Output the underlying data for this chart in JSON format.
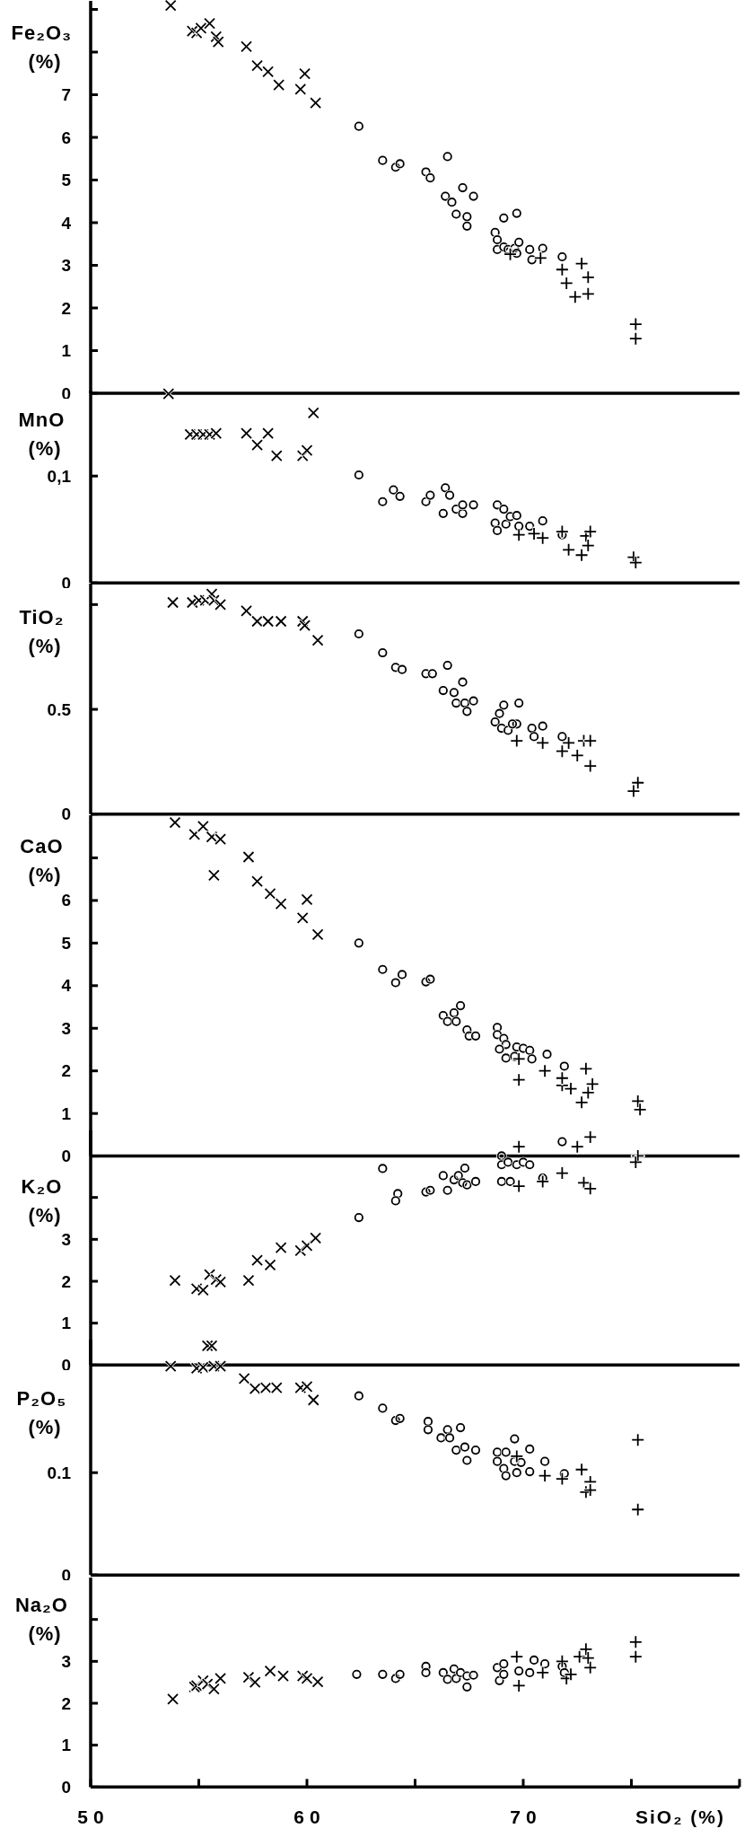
{
  "chart_data": [
    {
      "type": "scatter",
      "ylabel": "Fe₂O₃ (%)",
      "xlim": [
        50,
        80
      ],
      "ylim": [
        0,
        9.2
      ],
      "yticks": [
        0,
        1,
        2,
        3,
        4,
        5,
        6,
        7,
        {
          "value": 8,
          "label": null
        },
        {
          "value": 9,
          "label": null
        }
      ],
      "tick_labels": "y",
      "series": [
        {
          "color": "#000000",
          "marker": "x",
          "x": [
            53.7,
            54.7,
            54.9,
            55.1,
            55.5,
            55.8,
            55.9,
            57.2,
            57.7,
            58.2,
            58.7,
            59.7,
            59.9,
            60.4
          ],
          "values": [
            9.09,
            8.49,
            8.45,
            8.56,
            8.67,
            8.36,
            8.24,
            8.13,
            7.68,
            7.54,
            7.23,
            7.13,
            7.49,
            6.81
          ]
        },
        {
          "color": "#000000",
          "marker": "circle",
          "x": [
            62.4,
            63.5,
            64.1,
            64.3,
            65.5,
            65.7,
            66.5,
            66.4,
            66.7,
            67.2,
            66.9,
            67.4,
            67.4,
            67.7,
            69.1,
            69.7,
            68.7,
            68.8,
            68.8,
            69.1,
            69.3,
            69.6,
            69.8,
            69.7,
            70.3,
            70.4,
            70.9,
            71.8
          ],
          "values": [
            6.26,
            5.46,
            5.3,
            5.38,
            5.19,
            5.05,
            5.55,
            4.62,
            4.48,
            4.82,
            4.2,
            4.14,
            3.92,
            4.62,
            4.11,
            4.22,
            3.77,
            3.6,
            3.37,
            3.43,
            3.37,
            3.4,
            3.54,
            3.28,
            3.37,
            3.13,
            3.4,
            3.2
          ]
        },
        {
          "color": "#000000",
          "marker": "cross",
          "x": [
            69.4,
            70.8,
            71.8,
            72.0,
            72.4,
            72.7,
            73.0,
            73.0,
            75.2,
            75.2
          ],
          "values": [
            3.26,
            3.17,
            2.9,
            2.58,
            2.26,
            3.04,
            2.72,
            2.33,
            1.62,
            1.28
          ]
        }
      ]
    },
    {
      "type": "scatter",
      "ylabel": "MnO (%)",
      "xlim": [
        50,
        80
      ],
      "ylim": [
        0,
        0.18
      ],
      "yticks": [
        0,
        {
          "value": 0.1,
          "label": "0,1"
        }
      ],
      "tick_labels": "y",
      "series": [
        {
          "color": "#000000",
          "marker": "x",
          "x": [
            53.6,
            54.6,
            54.9,
            55.2,
            55.5,
            55.8,
            57.2,
            57.7,
            58.2,
            58.6,
            59.8,
            60.0,
            60.3
          ],
          "values": [
            0.177,
            0.139,
            0.139,
            0.139,
            0.139,
            0.14,
            0.14,
            0.129,
            0.14,
            0.119,
            0.119,
            0.124,
            0.159
          ]
        },
        {
          "color": "#000000",
          "marker": "circle",
          "x": [
            62.4,
            63.5,
            64.0,
            64.3,
            65.5,
            65.7,
            66.4,
            66.6,
            66.3,
            66.9,
            67.2,
            67.2,
            67.7,
            68.8,
            69.1,
            68.7,
            68.8,
            69.2,
            69.4,
            69.7,
            69.8,
            70.3,
            70.9,
            71.8
          ],
          "values": [
            0.101,
            0.076,
            0.087,
            0.081,
            0.076,
            0.082,
            0.089,
            0.082,
            0.065,
            0.069,
            0.065,
            0.073,
            0.073,
            0.073,
            0.069,
            0.056,
            0.049,
            0.055,
            0.062,
            0.063,
            0.053,
            0.053,
            0.058,
            0.045
          ]
        },
        {
          "color": "#000000",
          "marker": "cross",
          "x": [
            69.8,
            70.5,
            70.9,
            71.8,
            72.1,
            72.7,
            72.9,
            73.1,
            73.0,
            75.1,
            75.2
          ],
          "values": [
            0.045,
            0.046,
            0.042,
            0.048,
            0.031,
            0.026,
            0.044,
            0.048,
            0.035,
            0.024,
            0.019
          ]
        }
      ]
    },
    {
      "type": "scatter",
      "ylabel": "TiO₂ (%)",
      "xlim": [
        50,
        80
      ],
      "ylim": [
        0,
        1.1
      ],
      "yticks": [
        0,
        0.5,
        {
          "value": 1,
          "label": null
        }
      ],
      "tick_labels": "y",
      "series": [
        {
          "color": "#000000",
          "marker": "x",
          "x": [
            53.8,
            54.7,
            55.0,
            55.3,
            55.6,
            55.7,
            56.0,
            57.2,
            57.7,
            58.2,
            58.8,
            59.8,
            59.9,
            60.5
          ],
          "values": [
            1.01,
            1.01,
            1.02,
            1.02,
            1.05,
            1.02,
            1.0,
            0.97,
            0.92,
            0.92,
            0.92,
            0.92,
            0.9,
            0.83
          ]
        },
        {
          "color": "#000000",
          "marker": "circle",
          "x": [
            62.4,
            63.5,
            64.1,
            64.4,
            65.5,
            65.8,
            66.5,
            66.3,
            66.8,
            67.2,
            66.9,
            67.3,
            67.7,
            67.4,
            69.1,
            69.8,
            68.9,
            68.7,
            69.0,
            69.3,
            69.7,
            69.5,
            70.4,
            70.9,
            70.5,
            71.8
          ],
          "values": [
            0.86,
            0.77,
            0.7,
            0.69,
            0.67,
            0.67,
            0.71,
            0.59,
            0.58,
            0.63,
            0.53,
            0.53,
            0.54,
            0.49,
            0.52,
            0.53,
            0.48,
            0.44,
            0.41,
            0.4,
            0.43,
            0.43,
            0.41,
            0.42,
            0.37,
            0.37
          ]
        },
        {
          "color": "#000000",
          "marker": "cross",
          "x": [
            69.7,
            70.9,
            71.8,
            72.1,
            72.5,
            72.8,
            73.1,
            73.1,
            75.3,
            75.1
          ],
          "values": [
            0.35,
            0.34,
            0.3,
            0.34,
            0.28,
            0.35,
            0.35,
            0.23,
            0.15,
            0.11
          ]
        }
      ]
    },
    {
      "type": "scatter",
      "ylabel": "CaO (%)",
      "xlim": [
        50,
        80
      ],
      "ylim": [
        0,
        8
      ],
      "yticks": [
        0,
        1,
        2,
        3,
        4,
        5,
        6,
        {
          "value": 7,
          "label": null
        }
      ],
      "tick_labels": "y",
      "series": [
        {
          "color": "#000000",
          "marker": "x",
          "x": [
            53.9,
            54.8,
            55.2,
            55.6,
            56.0,
            55.7,
            57.3,
            57.7,
            58.3,
            58.8,
            59.8,
            60.0,
            60.5
          ],
          "values": [
            7.83,
            7.55,
            7.74,
            7.49,
            7.44,
            6.59,
            7.02,
            6.45,
            6.16,
            5.92,
            5.59,
            6.02,
            5.2
          ]
        },
        {
          "color": "#000000",
          "marker": "circle",
          "x": [
            62.4,
            63.5,
            64.1,
            64.4,
            65.5,
            65.7,
            66.3,
            66.5,
            66.8,
            67.1,
            66.9,
            67.4,
            67.5,
            67.8,
            68.8,
            68.8,
            69.1,
            69.2,
            68.9,
            69.2,
            69.7,
            70.0,
            70.3,
            70.4,
            69.6,
            71.1,
            71.9
          ],
          "values": [
            5,
            4.38,
            4.07,
            4.26,
            4.09,
            4.15,
            3.3,
            3.16,
            3.36,
            3.53,
            3.16,
            2.96,
            2.82,
            2.82,
            3.02,
            2.85,
            2.76,
            2.62,
            2.51,
            2.3,
            2.56,
            2.53,
            2.48,
            2.28,
            2.34,
            2.39,
            2.11
          ]
        },
        {
          "color": "#000000",
          "marker": "cross",
          "x": [
            69.8,
            69.8,
            71.0,
            71.8,
            72.2,
            71.8,
            72.9,
            73.2,
            73.0,
            72.7,
            75.3,
            75.4
          ],
          "values": [
            2.28,
            1.79,
            2.0,
            1.66,
            1.58,
            1.83,
            2.05,
            1.69,
            1.49,
            1.26,
            1.29,
            1.09
          ]
        }
      ]
    },
    {
      "type": "scatter",
      "ylabel": "K₂O (%)",
      "xlim": [
        50,
        80
      ],
      "ylim": [
        0,
        5.6
      ],
      "yticks": [
        0,
        1,
        2,
        3,
        {
          "value": 4,
          "label": null
        }
      ],
      "tick_labels": "y",
      "series": [
        {
          "color": "#000000",
          "marker": "x",
          "x": [
            53.9,
            54.9,
            55.2,
            55.5,
            55.8,
            56.0,
            57.3,
            57.7,
            58.3,
            58.8,
            59.7,
            60.0,
            60.4
          ],
          "values": [
            2.02,
            1.82,
            1.79,
            2.16,
            2.04,
            1.98,
            2.02,
            2.5,
            2.39,
            2.8,
            2.73,
            2.85,
            3.03
          ]
        },
        {
          "color": "#000000",
          "marker": "circle",
          "x": [
            62.4,
            63.5,
            64.2,
            64.1,
            65.5,
            65.7,
            66.3,
            66.5,
            66.8,
            67.0,
            67.3,
            67.2,
            67.4,
            67.8,
            69.0,
            69.0,
            69.3,
            69.7,
            70.0,
            70.3,
            69.0,
            69.4,
            70.9,
            71.8
          ],
          "values": [
            3.52,
            4.69,
            4.09,
            3.92,
            4.13,
            4.17,
            4.52,
            4.17,
            4.42,
            4.52,
            4.7,
            4.35,
            4.3,
            4.38,
            4.99,
            4.78,
            4.84,
            4.78,
            4.84,
            4.78,
            4.38,
            4.38,
            4.46,
            5.33
          ]
        },
        {
          "color": "#000000",
          "marker": "cross",
          "x": [
            69.8,
            70.9,
            71.8,
            72.8,
            73.1,
            75.3,
            75.2,
            69.8,
            72.5,
            73.1
          ],
          "values": [
            4.27,
            4.38,
            4.58,
            4.35,
            4.21,
            4.99,
            4.84,
            5.21,
            5.21,
            5.44
          ]
        }
      ]
    },
    {
      "type": "scatter",
      "ylabel": "P₂O₅ (%)",
      "xlim": [
        50,
        80
      ],
      "ylim": [
        0,
        0.23
      ],
      "yticks": [
        0,
        0.1
      ],
      "tick_labels": "y",
      "series": [
        {
          "color": "#000000",
          "marker": "x",
          "x": [
            53.7,
            54.9,
            55.2,
            55.4,
            55.6,
            55.7,
            56.0,
            57.1,
            57.6,
            58.1,
            58.6,
            59.7,
            60.0,
            60.3
          ],
          "values": [
            0.204,
            0.202,
            0.203,
            0.224,
            0.224,
            0.204,
            0.204,
            0.192,
            0.182,
            0.183,
            0.183,
            0.183,
            0.184,
            0.171
          ]
        },
        {
          "color": "#000000",
          "marker": "circle",
          "x": [
            62.4,
            63.5,
            64.1,
            64.3,
            65.6,
            65.6,
            66.5,
            66.2,
            66.6,
            67.1,
            66.9,
            67.3,
            67.8,
            67.4,
            68.8,
            69.2,
            68.8,
            69.6,
            70.3,
            69.1,
            69.2,
            69.6,
            69.9,
            69.7,
            70.3,
            71.0,
            71.9
          ],
          "values": [
            0.175,
            0.163,
            0.151,
            0.153,
            0.15,
            0.142,
            0.142,
            0.134,
            0.134,
            0.144,
            0.122,
            0.125,
            0.122,
            0.112,
            0.12,
            0.12,
            0.111,
            0.133,
            0.123,
            0.104,
            0.097,
            0.111,
            0.11,
            0.1,
            0.101,
            0.111,
            0.099
          ]
        },
        {
          "color": "#000000",
          "marker": "cross",
          "x": [
            69.7,
            71.0,
            71.8,
            72.7,
            73.1,
            72.9,
            73.1,
            75.3,
            75.3
          ],
          "values": [
            0.116,
            0.097,
            0.094,
            0.103,
            0.091,
            0.081,
            0.083,
            0.132,
            0.064
          ]
        }
      ]
    },
    {
      "type": "scatter",
      "ylabel": "Na₂O (%)",
      "xlabel": "SiO₂ (%)",
      "xlim": [
        50,
        80
      ],
      "xticks": [
        50,
        {
          "value": 55,
          "label": null
        },
        60,
        {
          "value": 65,
          "label": null
        },
        70,
        {
          "value": 75,
          "label": null
        },
        {
          "value": 80,
          "label": null
        }
      ],
      "ylim": [
        0,
        5
      ],
      "yticks": [
        0,
        1,
        2,
        3,
        {
          "value": 4,
          "label": null
        }
      ],
      "series": [
        {
          "color": "#000000",
          "marker": "x",
          "x": [
            53.8,
            54.8,
            54.9,
            55.2,
            55.4,
            55.7,
            56.0,
            57.3,
            57.6,
            58.3,
            58.9,
            59.8,
            60.0,
            60.5
          ],
          "values": [
            2.1,
            2.39,
            2.42,
            2.54,
            2.46,
            2.34,
            2.59,
            2.62,
            2.5,
            2.77,
            2.65,
            2.65,
            2.59,
            2.51
          ]
        },
        {
          "color": "#000000",
          "marker": "circle",
          "x": [
            62.3,
            63.5,
            64.1,
            64.3,
            65.5,
            65.5,
            66.3,
            66.5,
            66.8,
            66.9,
            67.1,
            67.4,
            67.4,
            67.7,
            68.8,
            68.9,
            69.1,
            69.1,
            69.8,
            70.3,
            70.5,
            71.0,
            71.8,
            71.9
          ],
          "values": [
            2.69,
            2.69,
            2.59,
            2.69,
            2.88,
            2.73,
            2.73,
            2.57,
            2.82,
            2.59,
            2.73,
            2.65,
            2.39,
            2.67,
            2.85,
            2.54,
            2.94,
            2.69,
            2.77,
            2.73,
            3.03,
            2.94,
            2.88,
            2.73
          ]
        },
        {
          "color": "#000000",
          "marker": "cross",
          "x": [
            69.7,
            69.8,
            70.9,
            71.8,
            72.0,
            72.2,
            72.6,
            72.9,
            73.0,
            73.1,
            75.2,
            75.2
          ],
          "values": [
            3.11,
            2.42,
            2.73,
            3.0,
            2.59,
            2.69,
            3.11,
            3.29,
            3.08,
            2.85,
            3.46,
            3.11
          ]
        }
      ]
    }
  ]
}
